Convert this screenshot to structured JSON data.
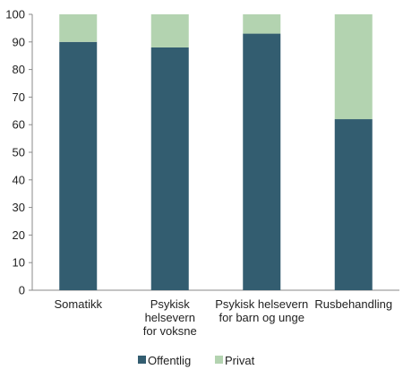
{
  "chart_data": {
    "type": "bar",
    "stacked": true,
    "title": "",
    "xlabel": "",
    "ylabel": "",
    "ylim": [
      0,
      100
    ],
    "yticks": [
      0,
      10,
      20,
      30,
      40,
      50,
      60,
      70,
      80,
      90,
      100
    ],
    "grid": false,
    "legend_position": "bottom",
    "categories": [
      [
        "Somatikk"
      ],
      [
        "Psykisk",
        "helsevern",
        "for voksne"
      ],
      [
        "Psykisk helsevern",
        "for barn og unge"
      ],
      [
        "Rusbehandling"
      ]
    ],
    "series": [
      {
        "name": "Offentlig",
        "color": "#335d70",
        "values": [
          90,
          88,
          93,
          62
        ]
      },
      {
        "name": "Privat",
        "color": "#b3d3b0",
        "values": [
          10,
          12,
          7,
          38
        ]
      }
    ]
  }
}
